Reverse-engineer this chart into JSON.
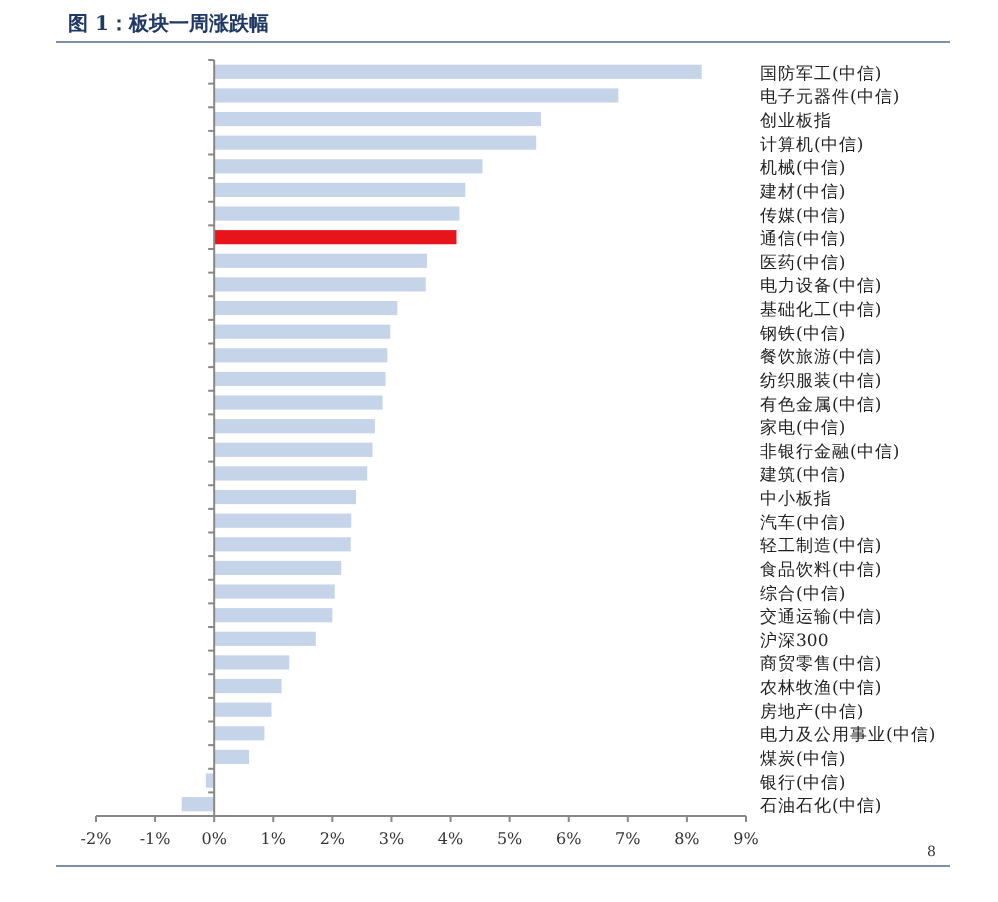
{
  "chart_data": {
    "type": "bar",
    "orientation": "horizontal",
    "title": "图 1：板块一周涨跌幅",
    "categories": [
      "国防军工(中信)",
      "电子元器件(中信)",
      "创业板指",
      "计算机(中信)",
      "机械(中信)",
      "建材(中信)",
      "传媒(中信)",
      "通信(中信)",
      "医药(中信)",
      "电力设备(中信)",
      "基础化工(中信)",
      "钢铁(中信)",
      "餐饮旅游(中信)",
      "纺织服装(中信)",
      "有色金属(中信)",
      "家电(中信)",
      "非银行金融(中信)",
      "建筑(中信)",
      "中小板指",
      "汽车(中信)",
      "轻工制造(中信)",
      "食品饮料(中信)",
      "综合(中信)",
      "交通运输(中信)",
      "沪深300",
      "商贸零售(中信)",
      "农林牧渔(中信)",
      "房地产(中信)",
      "电力及公用事业(中信)",
      "煤炭(中信)",
      "银行(中信)",
      "石油石化(中信)"
    ],
    "values": [
      8.25,
      6.84,
      5.53,
      5.45,
      4.54,
      4.25,
      4.15,
      4.1,
      3.6,
      3.58,
      3.1,
      2.98,
      2.93,
      2.9,
      2.85,
      2.72,
      2.68,
      2.59,
      2.4,
      2.32,
      2.31,
      2.15,
      2.04,
      2.0,
      1.72,
      1.27,
      1.14,
      0.97,
      0.85,
      0.59,
      -0.14,
      -0.55
    ],
    "colors": [
      "#c6d4ea",
      "#c6d4ea",
      "#c6d4ea",
      "#c6d4ea",
      "#c6d4ea",
      "#c6d4ea",
      "#c6d4ea",
      "#e8141c",
      "#c6d4ea",
      "#c6d4ea",
      "#c6d4ea",
      "#c6d4ea",
      "#c6d4ea",
      "#c6d4ea",
      "#c6d4ea",
      "#c6d4ea",
      "#c6d4ea",
      "#c6d4ea",
      "#c6d4ea",
      "#c6d4ea",
      "#c6d4ea",
      "#c6d4ea",
      "#c6d4ea",
      "#c6d4ea",
      "#c6d4ea",
      "#c6d4ea",
      "#c6d4ea",
      "#c6d4ea",
      "#c6d4ea",
      "#c6d4ea",
      "#c6d4ea",
      "#c6d4ea"
    ],
    "xlim": [
      -2,
      9
    ],
    "xticks": [
      {
        "value": -2,
        "label": "-2%"
      },
      {
        "value": -1,
        "label": "-1%"
      },
      {
        "value": 0,
        "label": "0%"
      },
      {
        "value": 1,
        "label": "1%"
      },
      {
        "value": 2,
        "label": "2%"
      },
      {
        "value": 3,
        "label": "3%"
      },
      {
        "value": 4,
        "label": "4%"
      },
      {
        "value": 5,
        "label": "5%"
      },
      {
        "value": 6,
        "label": "6%"
      },
      {
        "value": 7,
        "label": "7%"
      },
      {
        "value": 8,
        "label": "8%"
      },
      {
        "value": 9,
        "label": "9%"
      }
    ],
    "annotations": [
      "8"
    ]
  }
}
